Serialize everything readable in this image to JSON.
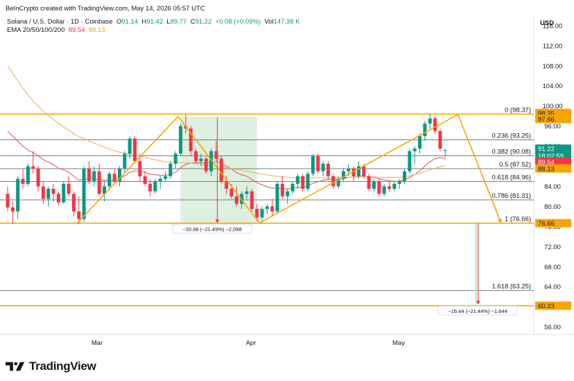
{
  "credit": "BeInCrypto created with TradingView.com, May 14, 2026 05:57 UTC",
  "legend": {
    "symbol": "Solana / U.S. Dollar · 1D · Coinbase",
    "o_label": "O",
    "o_value": "91.14",
    "h_label": "H",
    "h_value": "91.42",
    "l_label": "L",
    "l_value": "89.77",
    "c_label": "C",
    "c_value": "91.22",
    "change": "+0.08 (+0.09%)",
    "vol_label": "Vol",
    "vol_value": "147.38 K",
    "ema_label": "EMA 20/50/100/200",
    "ema_value_1": "89.54",
    "ema_value_2": "88.13"
  },
  "currency": "USD",
  "brand": "TradingView",
  "colors": {
    "up": "#089981",
    "down": "#f23645",
    "fib_line": "#787b86",
    "zigzag": "#f7a600",
    "ema_fast": "#e35d5d",
    "ema_slow": "#e8b56a",
    "highlight": "#c8e6c9"
  },
  "chart_data": {
    "type": "candlestick",
    "y_axis": {
      "ylim": [
        54.5,
        117.5
      ],
      "ticks": [
        56,
        60,
        64,
        68,
        72,
        76,
        80,
        84,
        88,
        92,
        96,
        100,
        104,
        108,
        112,
        116
      ]
    },
    "x_axis": {
      "labels": [
        "Mar",
        "Apr",
        "May"
      ]
    },
    "candles": [
      {
        "o": 82.5,
        "h": 84.0,
        "l": 79.0,
        "c": 79.8
      },
      {
        "o": 79.8,
        "h": 81.0,
        "l": 76.5,
        "c": 79.0
      },
      {
        "o": 79.0,
        "h": 86.0,
        "l": 77.5,
        "c": 85.5
      },
      {
        "o": 85.5,
        "h": 87.5,
        "l": 83.5,
        "c": 84.5
      },
      {
        "o": 84.5,
        "h": 88.5,
        "l": 84.0,
        "c": 88.0
      },
      {
        "o": 88.0,
        "h": 91.0,
        "l": 86.5,
        "c": 87.5
      },
      {
        "o": 87.5,
        "h": 88.0,
        "l": 83.0,
        "c": 84.0
      },
      {
        "o": 84.0,
        "h": 85.0,
        "l": 80.5,
        "c": 81.5
      },
      {
        "o": 81.5,
        "h": 84.0,
        "l": 80.0,
        "c": 83.5
      },
      {
        "o": 83.5,
        "h": 84.5,
        "l": 81.0,
        "c": 82.5
      },
      {
        "o": 82.5,
        "h": 83.0,
        "l": 80.0,
        "c": 80.8
      },
      {
        "o": 80.8,
        "h": 85.0,
        "l": 80.5,
        "c": 84.5
      },
      {
        "o": 84.5,
        "h": 86.0,
        "l": 82.0,
        "c": 82.5
      },
      {
        "o": 82.5,
        "h": 83.0,
        "l": 78.0,
        "c": 79.0
      },
      {
        "o": 79.0,
        "h": 82.0,
        "l": 76.5,
        "c": 77.5
      },
      {
        "o": 77.5,
        "h": 88.0,
        "l": 77.0,
        "c": 87.5
      },
      {
        "o": 87.5,
        "h": 89.0,
        "l": 84.5,
        "c": 85.0
      },
      {
        "o": 85.0,
        "h": 88.0,
        "l": 84.0,
        "c": 87.0
      },
      {
        "o": 87.0,
        "h": 88.5,
        "l": 82.0,
        "c": 82.5
      },
      {
        "o": 82.5,
        "h": 85.0,
        "l": 81.0,
        "c": 84.0
      },
      {
        "o": 84.0,
        "h": 87.0,
        "l": 83.5,
        "c": 86.5
      },
      {
        "o": 86.5,
        "h": 87.5,
        "l": 84.5,
        "c": 85.0
      },
      {
        "o": 85.0,
        "h": 88.0,
        "l": 84.0,
        "c": 87.5
      },
      {
        "o": 87.5,
        "h": 91.0,
        "l": 86.5,
        "c": 90.5
      },
      {
        "o": 90.5,
        "h": 94.0,
        "l": 89.5,
        "c": 93.5
      },
      {
        "o": 93.5,
        "h": 94.0,
        "l": 88.5,
        "c": 89.0
      },
      {
        "o": 89.0,
        "h": 90.5,
        "l": 85.0,
        "c": 86.0
      },
      {
        "o": 86.0,
        "h": 87.0,
        "l": 84.0,
        "c": 84.5
      },
      {
        "o": 84.5,
        "h": 85.5,
        "l": 82.0,
        "c": 83.0
      },
      {
        "o": 83.0,
        "h": 85.5,
        "l": 82.5,
        "c": 85.0
      },
      {
        "o": 85.0,
        "h": 86.0,
        "l": 83.5,
        "c": 85.5
      },
      {
        "o": 85.5,
        "h": 87.0,
        "l": 85.0,
        "c": 86.0
      },
      {
        "o": 86.0,
        "h": 89.0,
        "l": 85.5,
        "c": 88.5
      },
      {
        "o": 88.5,
        "h": 91.0,
        "l": 87.5,
        "c": 90.5
      },
      {
        "o": 90.5,
        "h": 96.5,
        "l": 90.0,
        "c": 96.0
      },
      {
        "o": 96.0,
        "h": 98.4,
        "l": 94.5,
        "c": 95.5
      },
      {
        "o": 95.5,
        "h": 96.0,
        "l": 90.0,
        "c": 91.0
      },
      {
        "o": 91.0,
        "h": 91.5,
        "l": 88.5,
        "c": 89.0
      },
      {
        "o": 89.0,
        "h": 90.5,
        "l": 88.0,
        "c": 89.5
      },
      {
        "o": 89.5,
        "h": 90.0,
        "l": 86.5,
        "c": 87.0
      },
      {
        "o": 87.0,
        "h": 91.5,
        "l": 86.0,
        "c": 91.0
      },
      {
        "o": 91.0,
        "h": 93.0,
        "l": 89.0,
        "c": 89.5
      },
      {
        "o": 89.5,
        "h": 90.0,
        "l": 84.5,
        "c": 85.0
      },
      {
        "o": 85.0,
        "h": 86.0,
        "l": 82.5,
        "c": 83.5
      },
      {
        "o": 83.5,
        "h": 84.5,
        "l": 81.5,
        "c": 82.0
      },
      {
        "o": 82.0,
        "h": 84.0,
        "l": 80.0,
        "c": 80.5
      },
      {
        "o": 80.5,
        "h": 83.0,
        "l": 79.5,
        "c": 82.5
      },
      {
        "o": 82.5,
        "h": 84.0,
        "l": 81.5,
        "c": 83.0
      },
      {
        "o": 83.0,
        "h": 83.5,
        "l": 79.0,
        "c": 79.5
      },
      {
        "o": 79.5,
        "h": 80.5,
        "l": 77.0,
        "c": 77.8
      },
      {
        "o": 77.8,
        "h": 80.0,
        "l": 76.7,
        "c": 79.5
      },
      {
        "o": 79.5,
        "h": 80.5,
        "l": 78.5,
        "c": 80.0
      },
      {
        "o": 80.0,
        "h": 81.5,
        "l": 78.0,
        "c": 79.0
      },
      {
        "o": 79.0,
        "h": 85.0,
        "l": 78.5,
        "c": 84.5
      },
      {
        "o": 84.5,
        "h": 86.0,
        "l": 81.5,
        "c": 82.0
      },
      {
        "o": 82.0,
        "h": 83.5,
        "l": 80.5,
        "c": 83.0
      },
      {
        "o": 83.0,
        "h": 85.0,
        "l": 82.5,
        "c": 84.5
      },
      {
        "o": 84.5,
        "h": 86.5,
        "l": 83.5,
        "c": 86.0
      },
      {
        "o": 86.0,
        "h": 86.5,
        "l": 83.0,
        "c": 83.5
      },
      {
        "o": 83.5,
        "h": 87.0,
        "l": 83.0,
        "c": 86.5
      },
      {
        "o": 86.5,
        "h": 90.5,
        "l": 86.0,
        "c": 90.0
      },
      {
        "o": 90.0,
        "h": 90.5,
        "l": 86.5,
        "c": 87.0
      },
      {
        "o": 87.0,
        "h": 89.0,
        "l": 86.0,
        "c": 88.5
      },
      {
        "o": 88.5,
        "h": 89.0,
        "l": 85.5,
        "c": 86.0
      },
      {
        "o": 86.0,
        "h": 86.5,
        "l": 83.5,
        "c": 84.0
      },
      {
        "o": 84.0,
        "h": 86.0,
        "l": 83.5,
        "c": 85.5
      },
      {
        "o": 85.5,
        "h": 87.5,
        "l": 85.0,
        "c": 87.0
      },
      {
        "o": 87.0,
        "h": 88.5,
        "l": 86.0,
        "c": 87.5
      },
      {
        "o": 87.5,
        "h": 88.0,
        "l": 85.0,
        "c": 86.0
      },
      {
        "o": 86.0,
        "h": 89.0,
        "l": 85.5,
        "c": 88.0
      },
      {
        "o": 88.0,
        "h": 88.5,
        "l": 85.5,
        "c": 86.0
      },
      {
        "o": 86.0,
        "h": 86.5,
        "l": 83.0,
        "c": 83.5
      },
      {
        "o": 83.5,
        "h": 85.5,
        "l": 83.0,
        "c": 85.0
      },
      {
        "o": 85.0,
        "h": 85.5,
        "l": 82.0,
        "c": 82.5
      },
      {
        "o": 82.5,
        "h": 84.5,
        "l": 82.0,
        "c": 84.0
      },
      {
        "o": 84.0,
        "h": 85.0,
        "l": 83.0,
        "c": 83.5
      },
      {
        "o": 83.5,
        "h": 85.0,
        "l": 83.0,
        "c": 84.5
      },
      {
        "o": 84.5,
        "h": 85.5,
        "l": 83.5,
        "c": 85.0
      },
      {
        "o": 85.0,
        "h": 87.5,
        "l": 84.5,
        "c": 87.0
      },
      {
        "o": 87.0,
        "h": 91.5,
        "l": 86.5,
        "c": 91.0
      },
      {
        "o": 91.0,
        "h": 92.0,
        "l": 88.5,
        "c": 91.5
      },
      {
        "o": 91.5,
        "h": 94.5,
        "l": 90.5,
        "c": 94.0
      },
      {
        "o": 94.0,
        "h": 97.0,
        "l": 93.0,
        "c": 96.5
      },
      {
        "o": 96.5,
        "h": 98.4,
        "l": 95.5,
        "c": 97.5
      },
      {
        "o": 97.5,
        "h": 98.0,
        "l": 94.5,
        "c": 95.0
      },
      {
        "o": 95.0,
        "h": 95.5,
        "l": 91.0,
        "c": 91.5
      },
      {
        "o": 91.14,
        "h": 91.42,
        "l": 89.77,
        "c": 91.22
      }
    ],
    "ema_series": [
      {
        "values": [
          95,
          94,
          93,
          92,
          91.2,
          90.7,
          90.1,
          89.3,
          88.8,
          88.3,
          87.6,
          87.3,
          86.8,
          86.0,
          85.2,
          85.5,
          85.4,
          85.6,
          85.3,
          85.2,
          85.3,
          85.3,
          85.6,
          86.1,
          86.8,
          87.1,
          87.0,
          86.8,
          86.4,
          86.3,
          86.2,
          86.2,
          86.4,
          86.8,
          87.7,
          88.4,
          88.6,
          88.7,
          88.7,
          88.6,
          88.8,
          88.9,
          88.5,
          88.0,
          87.4,
          86.7,
          86.3,
          86.0,
          85.4,
          84.7,
          84.3,
          83.9,
          83.6,
          83.7,
          83.5,
          83.5,
          83.6,
          83.8,
          83.8,
          84.1,
          84.6,
          84.9,
          85.2,
          85.4,
          85.3,
          85.4,
          85.5,
          85.8,
          85.8,
          86.0,
          86.1,
          85.9,
          85.8,
          85.5,
          85.3,
          85.1,
          85.0,
          85.0,
          85.2,
          85.8,
          86.3,
          87.1,
          88.0,
          88.9,
          89.5,
          89.7,
          89.54
        ]
      },
      {
        "values": [
          108,
          106.5,
          105,
          103.5,
          102.2,
          101,
          100,
          99,
          98.1,
          97.3,
          96.5,
          95.8,
          95.2,
          94.5,
          93.9,
          93.5,
          93.0,
          92.6,
          92.2,
          91.8,
          91.4,
          91.1,
          90.8,
          90.6,
          90.4,
          90.2,
          90.0,
          89.8,
          89.5,
          89.3,
          89.1,
          88.9,
          88.8,
          88.7,
          88.7,
          88.7,
          88.6,
          88.5,
          88.4,
          88.2,
          88.1,
          88.0,
          87.9,
          87.7,
          87.5,
          87.3,
          87.2,
          87.0,
          86.8,
          86.6,
          86.4,
          86.3,
          86.1,
          86.0,
          85.9,
          85.8,
          85.7,
          85.7,
          85.6,
          85.6,
          85.7,
          85.7,
          85.7,
          85.7,
          85.7,
          85.7,
          85.8,
          85.8,
          85.8,
          85.9,
          85.9,
          85.9,
          85.9,
          85.8,
          85.8,
          85.8,
          85.8,
          85.8,
          85.9,
          86.1,
          86.3,
          86.6,
          86.9,
          87.3,
          87.6,
          87.9,
          88.13
        ]
      }
    ],
    "fib_levels": [
      {
        "label": "0 (98.37)",
        "value": 98.37
      },
      {
        "label": "0.236 (93.25)",
        "value": 93.25
      },
      {
        "label": "0.382 (90.08)",
        "value": 90.08
      },
      {
        "label": "0.5 (87.52)",
        "value": 87.52
      },
      {
        "label": "0.618 (84.96)",
        "value": 84.96
      },
      {
        "label": "0.786 (81.31)",
        "value": 81.31
      },
      {
        "label": "1 (76.66)",
        "value": 76.66
      },
      {
        "label": "1.618 (63.25)",
        "value": 63.25
      }
    ],
    "support_resistance": [
      {
        "value": 98.37
      },
      {
        "value": 76.66
      },
      {
        "value": 60.23
      }
    ],
    "zigzag": [
      {
        "i": 13.5,
        "v": 76.5
      },
      {
        "i": 33.5,
        "v": 97.9
      },
      {
        "i": 49.5,
        "v": 76.7
      },
      {
        "i": 88.5,
        "v": 98.3
      },
      {
        "i": 97.0,
        "v": 76.66
      }
    ],
    "highlight_range": {
      "i0": 34,
      "i1": 49,
      "v0": 76.6,
      "v1": 97.9
    },
    "measure_1": {
      "i": 41.2,
      "v_from": 97.7,
      "v_to": 76.7,
      "label": "−20.98 (−21.49%) −2,098"
    },
    "measure_2": {
      "i": 92.5,
      "v_from": 76.7,
      "v_to": 60.5,
      "label": "−16.44 (−21.44%) −1,644"
    },
    "price_tags": [
      {
        "label": "98.35",
        "value": 98.6,
        "style": "orange"
      },
      {
        "label": "97.66",
        "value": 97.4,
        "style": "orange"
      },
      {
        "label": "91.22",
        "value": 91.5,
        "style": "green"
      },
      {
        "label": "18:02:59",
        "value": 90.1,
        "style": "green"
      },
      {
        "label": "89.54",
        "value": 88.9,
        "style": "red"
      },
      {
        "label": "88.13",
        "value": 87.55,
        "style": "orange"
      },
      {
        "label": "76.66",
        "value": 76.66,
        "style": "orange"
      },
      {
        "label": "60.23",
        "value": 60.23,
        "style": "orange"
      }
    ]
  }
}
